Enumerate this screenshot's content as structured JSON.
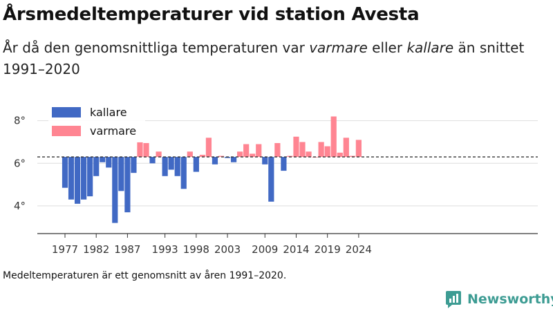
{
  "title": "Årsmedeltemperaturer vid station Avesta",
  "subtitle": {
    "part1": "År då den genomsnittliga temperaturen var ",
    "warm_word": "varmare",
    "part2": " eller ",
    "cold_word": "kallare",
    "part3": " än snittet 1991–2020"
  },
  "note": "Medeltemperaturen är ett genomsnitt av åren 1991–2020.",
  "brand": "Newsworthy",
  "colors": {
    "colder": "#4169c4",
    "warmer": "#ff8592",
    "grid": "#dddddd",
    "axis": "#333333",
    "brand": "#3d9c93"
  },
  "chart_data": {
    "type": "bar",
    "baseline": 6.3,
    "ylim": [
      2.7,
      8.8
    ],
    "yticks": [
      4,
      6,
      8
    ],
    "ytick_labels": [
      "4°",
      "6°",
      "8°"
    ],
    "xticks": [
      1977,
      1982,
      1987,
      1993,
      1998,
      2003,
      2009,
      2014,
      2019,
      2024
    ],
    "legend": {
      "position": "top-left",
      "entries": [
        {
          "label": "kallare",
          "color": "#4169c4"
        },
        {
          "label": "varmare",
          "color": "#ff8592"
        }
      ]
    },
    "x": [
      1977,
      1978,
      1979,
      1980,
      1981,
      1982,
      1983,
      1984,
      1985,
      1986,
      1987,
      1988,
      1989,
      1990,
      1991,
      1992,
      1993,
      1994,
      1995,
      1996,
      1997,
      1998,
      1999,
      2000,
      2001,
      2002,
      2003,
      2004,
      2005,
      2006,
      2007,
      2008,
      2009,
      2010,
      2011,
      2012,
      2013,
      2014,
      2015,
      2016,
      2017,
      2018,
      2019,
      2020,
      2021,
      2022,
      2023,
      2024
    ],
    "values": [
      4.85,
      4.3,
      4.1,
      4.3,
      4.45,
      5.4,
      6.05,
      5.8,
      3.2,
      4.7,
      3.7,
      5.55,
      7.0,
      6.95,
      6.0,
      6.55,
      5.4,
      5.7,
      5.4,
      4.8,
      6.55,
      5.6,
      6.4,
      7.2,
      5.95,
      6.35,
      6.25,
      6.05,
      6.55,
      6.9,
      6.45,
      6.9,
      5.95,
      4.2,
      6.95,
      5.65,
      6.35,
      7.25,
      7.0,
      6.55,
      6.3,
      7.0,
      6.8,
      8.2,
      6.5,
      7.2,
      6.35,
      7.1
    ]
  }
}
